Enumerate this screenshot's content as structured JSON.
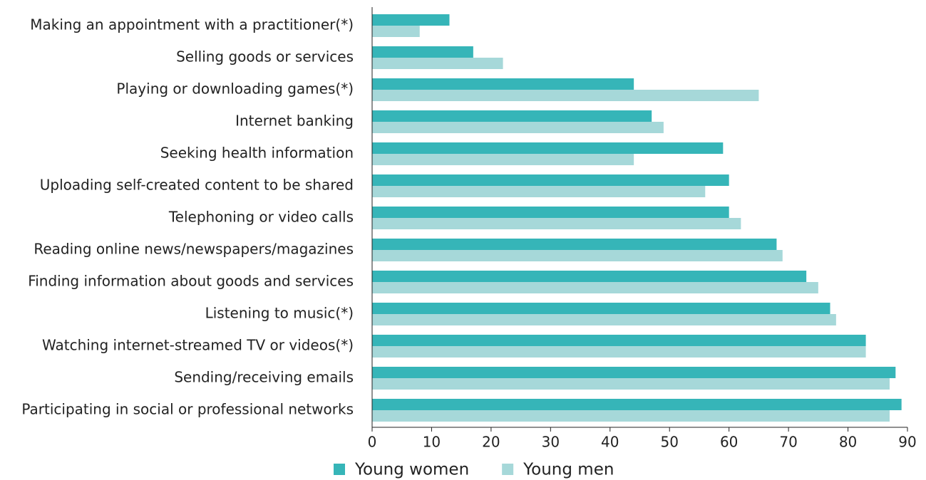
{
  "chart_data": {
    "type": "hbar",
    "categories": [
      "Making an appointment with a practitioner(*)",
      "Selling goods or services",
      "Playing or downloading games(*)",
      "Internet banking",
      "Seeking health information",
      "Uploading self-created content to be shared",
      "Telephoning or video calls",
      "Reading online news/newspapers/magazines",
      "Finding information about goods and services",
      "Listening to music(*)",
      "Watching internet-streamed TV or videos(*)",
      "Sending/receiving emails",
      "Participating in social or professional networks"
    ],
    "series": [
      {
        "name": "Young women",
        "color": "#36b5b8",
        "values": [
          13,
          17,
          44,
          47,
          59,
          60,
          60,
          68,
          73,
          77,
          83,
          88,
          89
        ]
      },
      {
        "name": "Young men",
        "color": "#a6d8d9",
        "values": [
          8,
          22,
          65,
          49,
          44,
          56,
          62,
          69,
          75,
          78,
          83,
          87,
          87
        ]
      }
    ],
    "xlim": [
      0,
      90
    ],
    "xticks": [
      0,
      10,
      20,
      30,
      40,
      50,
      60,
      70,
      80,
      90
    ],
    "grid": false,
    "legend": "bottom"
  }
}
